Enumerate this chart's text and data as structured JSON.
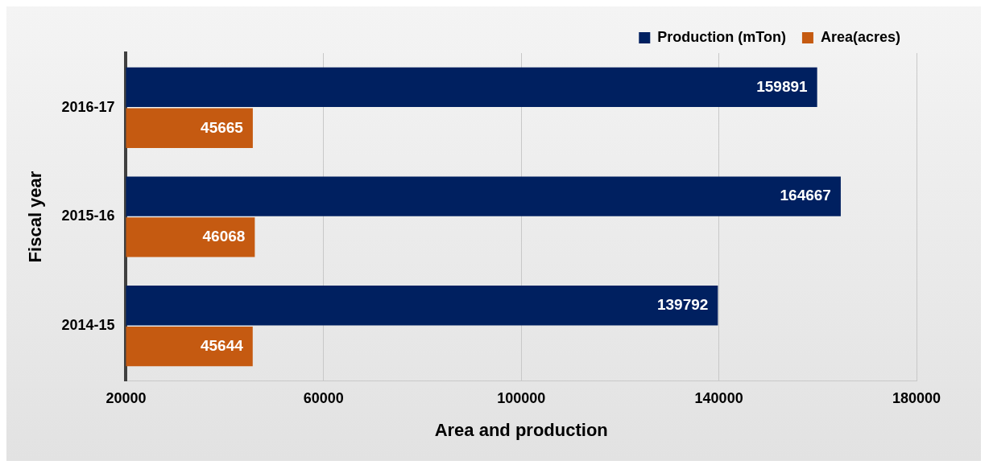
{
  "chart_data": {
    "type": "bar",
    "orientation": "horizontal",
    "xlabel": "Area and production",
    "ylabel": "Fiscal year",
    "categories": [
      "2016-17",
      "2015-16",
      "2014-15"
    ],
    "series": [
      {
        "name": "Production (mTon)",
        "color": "#002060",
        "values": [
          159891,
          164667,
          139792
        ]
      },
      {
        "name": "Area(acres)",
        "color": "#c55a11",
        "values": [
          45665,
          46068,
          45644
        ]
      }
    ],
    "xlim": [
      20000,
      180000
    ],
    "xticks": [
      20000,
      60000,
      100000,
      140000,
      180000
    ],
    "grid": "x",
    "legend": "top right",
    "data_labels": true
  }
}
